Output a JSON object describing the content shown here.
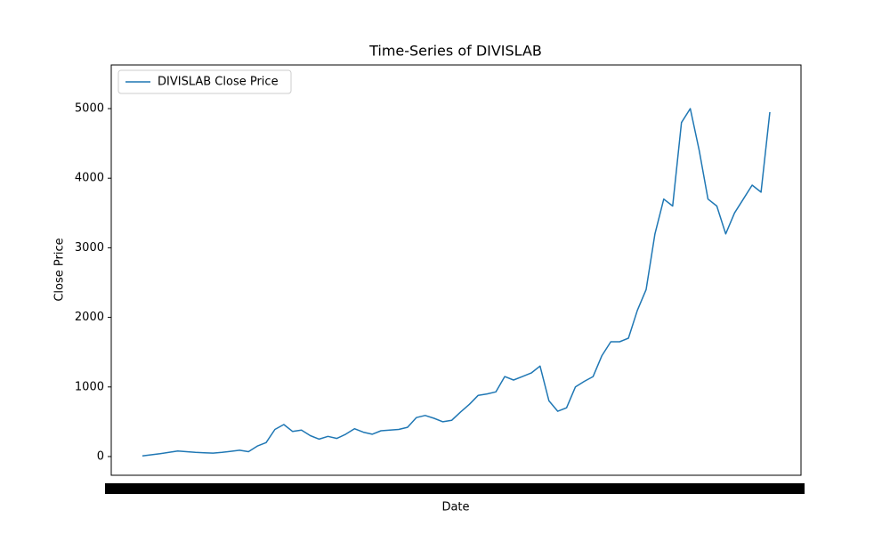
{
  "chart_data": {
    "type": "line",
    "title": "Time-Series of DIVISLAB",
    "x_label": "Date",
    "y_label": "Close Price",
    "categories": [
      null,
      null,
      null,
      null,
      null,
      null,
      null,
      null,
      null,
      null,
      null,
      null,
      null,
      null,
      null,
      null,
      null,
      null,
      null,
      null,
      null,
      null,
      null,
      null,
      null,
      null,
      null,
      null,
      null,
      null,
      null,
      null,
      null,
      null,
      null,
      null,
      null,
      null,
      null,
      null,
      null,
      null,
      null,
      null,
      null,
      null,
      null,
      null,
      null,
      null,
      null,
      null,
      null,
      null,
      null,
      null,
      null,
      null,
      null,
      null,
      null,
      null,
      null,
      null,
      null,
      null,
      null,
      null,
      null,
      null,
      null,
      null
    ],
    "series": [
      {
        "name": "DIVISLAB Close Price",
        "color": "#1f77b4",
        "values": [
          10,
          25,
          40,
          60,
          80,
          70,
          60,
          55,
          50,
          60,
          75,
          90,
          70,
          150,
          200,
          390,
          460,
          360,
          380,
          300,
          250,
          290,
          260,
          320,
          400,
          350,
          320,
          370,
          380,
          390,
          420,
          560,
          590,
          550,
          500,
          520,
          640,
          750,
          880,
          900,
          930,
          1150,
          1100,
          1150,
          1200,
          1300,
          800,
          650,
          700,
          1000,
          1080,
          1150,
          1450,
          1650,
          1650,
          1700,
          2100,
          2400,
          3200,
          3700,
          3600,
          4800,
          5000,
          4400,
          3700,
          3600,
          3200,
          3500,
          3700,
          3900,
          3800,
          4950
        ]
      }
    ],
    "ylim": [
      -269,
      5627
    ],
    "yticks": [
      0,
      1000,
      2000,
      3000,
      4000,
      5000
    ],
    "grid": false,
    "legend": "upper left"
  }
}
